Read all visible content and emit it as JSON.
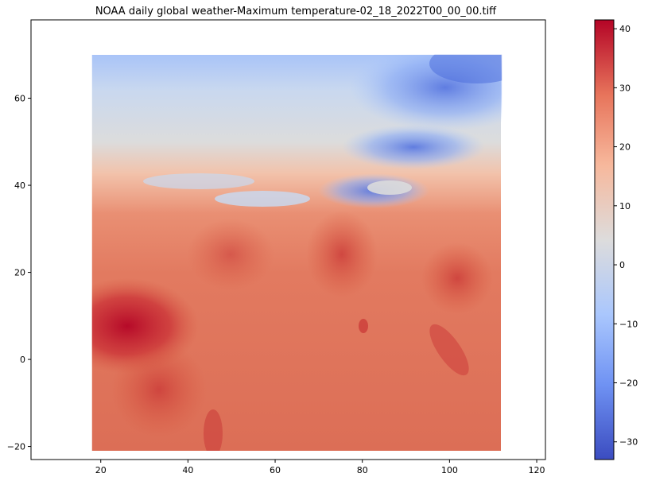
{
  "figure": {
    "title": "NOAA daily global weather-Maximum temperature-02_18_2022T00_00_00.tiff"
  },
  "map": {
    "variable": "Maximum temperature",
    "extent_lon": [
      18,
      112
    ],
    "extent_lat": [
      -21,
      70
    ],
    "xlim": [
      4,
      122
    ],
    "ylim": [
      -23,
      78
    ],
    "x_ticks": [
      20,
      40,
      60,
      80,
      100,
      120
    ],
    "y_ticks": [
      -20,
      0,
      20,
      40,
      60
    ],
    "colormap": "coolwarm",
    "colormap_stops": [
      "#3b4cc0",
      "#6f92f3",
      "#aac7fd",
      "#dddcdc",
      "#f7b89c",
      "#e7745b",
      "#b40426"
    ],
    "dominant_colors": {
      "ocean": "#e27a60",
      "north_asia": "#c9d8ef",
      "tibet": "#6f8ff0",
      "central_africa": "#b70f2a"
    }
  },
  "colorbar": {
    "range": [
      -33,
      41.5
    ],
    "ticks": [
      -30,
      -20,
      -10,
      0,
      10,
      20,
      30,
      40
    ]
  }
}
